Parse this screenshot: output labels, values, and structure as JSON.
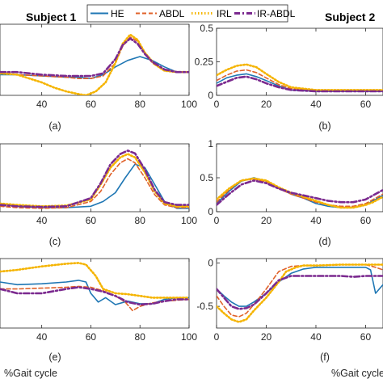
{
  "figure": {
    "subjects": [
      "Subject 1",
      "Subject 2"
    ],
    "xlabel": "%Gait cycle"
  },
  "colors": {
    "HE": "#1f77b4",
    "ABDL": "#e0622a",
    "IRL": "#f5b400",
    "IR-ABDL": "#7b2a8f"
  },
  "chart_data": [
    {
      "id": "a",
      "type": "line",
      "panel_label": "(a)",
      "subject": "Subject 1",
      "xlim": [
        23,
        100
      ],
      "ylim": [
        0,
        0.55
      ],
      "xticks": [
        40,
        60,
        80,
        100
      ],
      "yticks": [],
      "series": [
        {
          "name": "HE",
          "x": [
            23,
            30,
            40,
            50,
            55,
            60,
            65,
            70,
            75,
            80,
            85,
            90,
            95,
            100
          ],
          "y": [
            0.16,
            0.16,
            0.15,
            0.14,
            0.14,
            0.13,
            0.16,
            0.22,
            0.27,
            0.3,
            0.27,
            0.22,
            0.18,
            0.18
          ]
        },
        {
          "name": "ABDL",
          "x": [
            23,
            30,
            40,
            50,
            55,
            60,
            65,
            70,
            73,
            76,
            79,
            82,
            85,
            90,
            95,
            100
          ],
          "y": [
            0.17,
            0.16,
            0.15,
            0.14,
            0.13,
            0.13,
            0.15,
            0.25,
            0.38,
            0.45,
            0.42,
            0.33,
            0.25,
            0.19,
            0.18,
            0.18
          ]
        },
        {
          "name": "IRL",
          "x": [
            23,
            30,
            40,
            45,
            50,
            55,
            58,
            62,
            66,
            70,
            73,
            76,
            79,
            82,
            86,
            90,
            95,
            100
          ],
          "y": [
            0.17,
            0.16,
            0.1,
            0.06,
            0.03,
            0.01,
            0.0,
            0.03,
            0.1,
            0.25,
            0.4,
            0.47,
            0.43,
            0.33,
            0.24,
            0.19,
            0.18,
            0.18
          ]
        },
        {
          "name": "IR-ABDL",
          "x": [
            23,
            30,
            40,
            50,
            55,
            60,
            65,
            70,
            73,
            76,
            79,
            82,
            85,
            90,
            95,
            100
          ],
          "y": [
            0.18,
            0.18,
            0.16,
            0.15,
            0.15,
            0.15,
            0.17,
            0.28,
            0.39,
            0.44,
            0.4,
            0.32,
            0.26,
            0.2,
            0.18,
            0.18
          ]
        }
      ]
    },
    {
      "id": "b",
      "type": "line",
      "panel_label": "(b)",
      "subject": "Subject 2",
      "xlim": [
        0,
        67
      ],
      "ylim": [
        0,
        0.5
      ],
      "xticks": [
        0,
        20,
        40,
        60
      ],
      "xticklabels": [
        "0",
        "20",
        "40",
        "60"
      ],
      "yticks": [
        0,
        0.25,
        0.5
      ],
      "yticklabels": [
        "0",
        "0.25",
        "0.5"
      ],
      "series": [
        {
          "name": "HE",
          "x": [
            0,
            4,
            8,
            12,
            16,
            20,
            25,
            30,
            40,
            50,
            60,
            67
          ],
          "y": [
            0.09,
            0.13,
            0.15,
            0.16,
            0.14,
            0.11,
            0.07,
            0.04,
            0.03,
            0.03,
            0.03,
            0.03
          ]
        },
        {
          "name": "ABDL",
          "x": [
            0,
            4,
            8,
            12,
            16,
            20,
            25,
            30,
            40,
            50,
            60,
            67
          ],
          "y": [
            0.11,
            0.15,
            0.18,
            0.19,
            0.17,
            0.13,
            0.08,
            0.05,
            0.04,
            0.04,
            0.04,
            0.04
          ]
        },
        {
          "name": "IRL",
          "x": [
            0,
            4,
            8,
            12,
            16,
            20,
            25,
            30,
            40,
            50,
            60,
            67
          ],
          "y": [
            0.15,
            0.19,
            0.22,
            0.23,
            0.21,
            0.16,
            0.1,
            0.06,
            0.04,
            0.04,
            0.04,
            0.04
          ]
        },
        {
          "name": "IR-ABDL",
          "x": [
            0,
            4,
            8,
            12,
            16,
            20,
            25,
            30,
            40,
            50,
            60,
            67
          ],
          "y": [
            0.07,
            0.1,
            0.13,
            0.14,
            0.12,
            0.09,
            0.06,
            0.04,
            0.03,
            0.03,
            0.03,
            0.03
          ]
        }
      ]
    },
    {
      "id": "c",
      "type": "line",
      "panel_label": "(c)",
      "subject": "Subject 1",
      "xlim": [
        23,
        100
      ],
      "ylim": [
        0,
        1.0
      ],
      "xticks": [
        40,
        60,
        80,
        100
      ],
      "yticks": [],
      "series": [
        {
          "name": "HE",
          "x": [
            23,
            30,
            40,
            50,
            60,
            65,
            70,
            74,
            78,
            82,
            86,
            90,
            95,
            100
          ],
          "y": [
            0.12,
            0.08,
            0.06,
            0.06,
            0.08,
            0.15,
            0.28,
            0.5,
            0.7,
            0.65,
            0.4,
            0.15,
            0.05,
            0.05
          ]
        },
        {
          "name": "ABDL",
          "x": [
            23,
            30,
            40,
            50,
            60,
            64,
            68,
            72,
            75,
            78,
            82,
            86,
            90,
            95,
            100
          ],
          "y": [
            0.08,
            0.06,
            0.05,
            0.06,
            0.15,
            0.3,
            0.55,
            0.72,
            0.78,
            0.72,
            0.5,
            0.25,
            0.1,
            0.06,
            0.06
          ]
        },
        {
          "name": "IRL",
          "x": [
            23,
            30,
            40,
            50,
            60,
            64,
            68,
            72,
            75,
            78,
            82,
            86,
            90,
            95,
            100
          ],
          "y": [
            0.12,
            0.1,
            0.08,
            0.09,
            0.18,
            0.4,
            0.65,
            0.8,
            0.85,
            0.8,
            0.58,
            0.3,
            0.12,
            0.08,
            0.08
          ]
        },
        {
          "name": "IR-ABDL",
          "x": [
            23,
            30,
            40,
            50,
            60,
            64,
            68,
            72,
            75,
            78,
            82,
            86,
            90,
            95,
            100
          ],
          "y": [
            0.1,
            0.08,
            0.07,
            0.08,
            0.2,
            0.42,
            0.7,
            0.85,
            0.9,
            0.86,
            0.62,
            0.32,
            0.14,
            0.1,
            0.1
          ]
        }
      ]
    },
    {
      "id": "d",
      "type": "line",
      "panel_label": "(d)",
      "subject": "Subject 2",
      "xlim": [
        0,
        67
      ],
      "ylim": [
        0,
        1.0
      ],
      "xticks": [
        0,
        20,
        40,
        60
      ],
      "xticklabels": [
        "0",
        "20",
        "40",
        "60"
      ],
      "yticks": [
        0,
        0.5,
        1.0
      ],
      "yticklabels": [
        "0",
        "0.5",
        "1"
      ],
      "series": [
        {
          "name": "HE",
          "x": [
            0,
            5,
            10,
            15,
            20,
            25,
            30,
            35,
            40,
            45,
            50,
            55,
            60,
            63,
            67
          ],
          "y": [
            0.12,
            0.3,
            0.45,
            0.5,
            0.45,
            0.35,
            0.26,
            0.2,
            0.12,
            0.08,
            0.06,
            0.06,
            0.1,
            0.16,
            0.24
          ]
        },
        {
          "name": "ABDL",
          "x": [
            0,
            5,
            10,
            15,
            20,
            25,
            30,
            35,
            40,
            45,
            50,
            55,
            60,
            63,
            67
          ],
          "y": [
            0.14,
            0.32,
            0.46,
            0.48,
            0.44,
            0.34,
            0.26,
            0.2,
            0.14,
            0.1,
            0.08,
            0.08,
            0.12,
            0.18,
            0.26
          ]
        },
        {
          "name": "IRL",
          "x": [
            0,
            5,
            10,
            15,
            20,
            25,
            30,
            35,
            40,
            45,
            50,
            55,
            60,
            63,
            67
          ],
          "y": [
            0.18,
            0.34,
            0.46,
            0.49,
            0.46,
            0.36,
            0.28,
            0.22,
            0.16,
            0.1,
            0.06,
            0.06,
            0.1,
            0.14,
            0.22
          ]
        },
        {
          "name": "IR-ABDL",
          "x": [
            0,
            5,
            10,
            15,
            20,
            25,
            30,
            35,
            40,
            45,
            50,
            55,
            60,
            63,
            67
          ],
          "y": [
            0.1,
            0.26,
            0.4,
            0.46,
            0.42,
            0.34,
            0.28,
            0.24,
            0.2,
            0.16,
            0.14,
            0.14,
            0.18,
            0.24,
            0.32
          ]
        }
      ]
    },
    {
      "id": "e",
      "type": "line",
      "panel_label": "(e)",
      "subject": "Subject 1",
      "xlim": [
        23,
        100
      ],
      "ylim": [
        -0.75,
        0.05
      ],
      "xticks": [
        40,
        60,
        80,
        100
      ],
      "yticks": [],
      "series": [
        {
          "name": "HE",
          "x": [
            23,
            30,
            40,
            50,
            55,
            58,
            60,
            63,
            66,
            70,
            75,
            80,
            85,
            90,
            95,
            100
          ],
          "y": [
            -0.22,
            -0.25,
            -0.24,
            -0.22,
            -0.2,
            -0.22,
            -0.35,
            -0.45,
            -0.4,
            -0.48,
            -0.44,
            -0.47,
            -0.47,
            -0.42,
            -0.4,
            -0.4
          ]
        },
        {
          "name": "ABDL",
          "x": [
            23,
            30,
            40,
            50,
            55,
            60,
            65,
            70,
            74,
            77,
            80,
            85,
            90,
            95,
            100
          ],
          "y": [
            -0.3,
            -0.3,
            -0.29,
            -0.28,
            -0.27,
            -0.28,
            -0.32,
            -0.38,
            -0.45,
            -0.55,
            -0.5,
            -0.46,
            -0.44,
            -0.43,
            -0.42
          ]
        },
        {
          "name": "IRL",
          "x": [
            23,
            30,
            40,
            50,
            55,
            58,
            62,
            65,
            70,
            75,
            80,
            85,
            90,
            95,
            100
          ],
          "y": [
            -0.1,
            -0.08,
            -0.04,
            -0.01,
            0.0,
            -0.02,
            -0.15,
            -0.3,
            -0.35,
            -0.36,
            -0.38,
            -0.4,
            -0.4,
            -0.4,
            -0.4
          ]
        },
        {
          "name": "IR-ABDL",
          "x": [
            23,
            30,
            40,
            50,
            55,
            60,
            65,
            70,
            75,
            80,
            85,
            90,
            95,
            100
          ],
          "y": [
            -0.3,
            -0.35,
            -0.35,
            -0.3,
            -0.28,
            -0.3,
            -0.33,
            -0.38,
            -0.45,
            -0.48,
            -0.47,
            -0.44,
            -0.42,
            -0.42
          ]
        }
      ]
    },
    {
      "id": "f",
      "type": "line",
      "panel_label": "(f)",
      "subject": "Subject 2",
      "xlim": [
        0,
        67
      ],
      "ylim": [
        -0.75,
        0.05
      ],
      "xticks": [
        0,
        20,
        40,
        60
      ],
      "xticklabels": [
        "0",
        "20",
        "40",
        "60"
      ],
      "yticks": [
        -0.5,
        0
      ],
      "yticklabels": [
        "-0.5",
        "0"
      ],
      "series": [
        {
          "name": "HE",
          "x": [
            0,
            3,
            6,
            9,
            12,
            15,
            20,
            25,
            30,
            35,
            40,
            50,
            55,
            60,
            62,
            64,
            67
          ],
          "y": [
            -0.3,
            -0.38,
            -0.45,
            -0.5,
            -0.5,
            -0.45,
            -0.35,
            -0.22,
            -0.12,
            -0.07,
            -0.05,
            -0.05,
            -0.05,
            -0.05,
            -0.08,
            -0.35,
            -0.25
          ]
        },
        {
          "name": "ABDL",
          "x": [
            0,
            3,
            6,
            9,
            12,
            15,
            20,
            25,
            30,
            35,
            40,
            50,
            55,
            60,
            64,
            67
          ],
          "y": [
            -0.38,
            -0.5,
            -0.6,
            -0.62,
            -0.58,
            -0.48,
            -0.3,
            -0.1,
            -0.04,
            -0.03,
            -0.03,
            -0.02,
            -0.02,
            -0.02,
            -0.05,
            -0.08
          ]
        },
        {
          "name": "IRL",
          "x": [
            0,
            3,
            6,
            9,
            12,
            15,
            20,
            25,
            28,
            32,
            35,
            40,
            50,
            55,
            60,
            64,
            67
          ],
          "y": [
            -0.5,
            -0.58,
            -0.65,
            -0.68,
            -0.65,
            -0.55,
            -0.4,
            -0.22,
            -0.1,
            -0.05,
            -0.03,
            -0.03,
            -0.02,
            -0.02,
            -0.02,
            -0.02,
            -0.02
          ]
        },
        {
          "name": "IR-ABDL",
          "x": [
            0,
            3,
            6,
            9,
            12,
            15,
            20,
            25,
            30,
            35,
            40,
            50,
            55,
            60,
            64,
            67
          ],
          "y": [
            -0.3,
            -0.4,
            -0.5,
            -0.53,
            -0.52,
            -0.48,
            -0.35,
            -0.2,
            -0.15,
            -0.15,
            -0.15,
            -0.15,
            -0.16,
            -0.15,
            -0.15,
            -0.15
          ]
        }
      ]
    }
  ]
}
